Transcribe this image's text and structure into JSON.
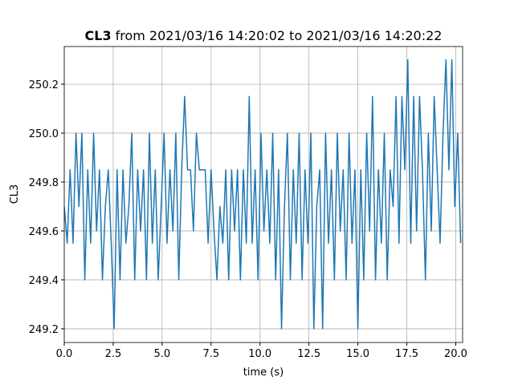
{
  "chart_data": {
    "type": "line",
    "title": {
      "bold": "CL3",
      "text": "from 2021/03/16 14:20:02 to 2021/03/16 14:20:22"
    },
    "xlabel": "time (s)",
    "ylabel": "CL3",
    "color": "#1f77b4",
    "grid": true,
    "xlim": [
      0,
      20.35
    ],
    "ylim": [
      249.144,
      250.354
    ],
    "xticks": [
      {
        "value": 0,
        "label": "0.0"
      },
      2.5,
      {
        "value": 5,
        "label": "5.0"
      },
      7.5,
      {
        "value": 10,
        "label": "10.0"
      },
      12.5,
      {
        "value": 15,
        "label": "15.0"
      },
      17.5,
      {
        "value": 20,
        "label": "20.0"
      }
    ],
    "yticks": [
      249.2,
      249.4,
      249.6,
      249.8,
      {
        "value": 250,
        "label": "250.0"
      },
      250.2
    ],
    "x": [
      0,
      0.15,
      0.3,
      0.45,
      0.6,
      0.75,
      0.9,
      1.05,
      1.2,
      1.35,
      1.5,
      1.65,
      1.8,
      1.95,
      2.1,
      2.25,
      2.4,
      2.55,
      2.7,
      2.85,
      3,
      3.15,
      3.3,
      3.45,
      3.6,
      3.75,
      3.9,
      4.05,
      4.2,
      4.35,
      4.5,
      4.65,
      4.8,
      4.95,
      5.1,
      5.25,
      5.4,
      5.55,
      5.7,
      5.85,
      6,
      6.15,
      6.3,
      6.45,
      6.6,
      6.75,
      6.9,
      7.05,
      7.2,
      7.35,
      7.5,
      7.65,
      7.8,
      7.95,
      8.1,
      8.25,
      8.4,
      8.55,
      8.7,
      8.85,
      9,
      9.15,
      9.3,
      9.45,
      9.6,
      9.75,
      9.9,
      10.05,
      10.2,
      10.35,
      10.5,
      10.65,
      10.8,
      10.95,
      11.1,
      11.25,
      11.4,
      11.55,
      11.7,
      11.85,
      12,
      12.15,
      12.3,
      12.45,
      12.6,
      12.75,
      12.9,
      13.05,
      13.2,
      13.35,
      13.5,
      13.65,
      13.8,
      13.95,
      14.1,
      14.25,
      14.4,
      14.55,
      14.7,
      14.85,
      15,
      15.15,
      15.3,
      15.45,
      15.6,
      15.75,
      15.9,
      16.05,
      16.2,
      16.35,
      16.5,
      16.65,
      16.8,
      16.95,
      17.1,
      17.25,
      17.4,
      17.55,
      17.7,
      17.85,
      18,
      18.15,
      18.3,
      18.45,
      18.6,
      18.75,
      18.9,
      19.05,
      19.2,
      19.35,
      19.5,
      19.65,
      19.8,
      19.95,
      20.1,
      20.25
    ],
    "values": [
      249.7,
      249.55,
      249.85,
      249.55,
      250,
      249.7,
      250,
      249.4,
      249.85,
      249.55,
      250,
      249.6,
      249.85,
      249.4,
      249.7,
      249.85,
      249.55,
      249.2,
      249.85,
      249.4,
      249.85,
      249.55,
      249.7,
      250,
      249.4,
      249.85,
      249.6,
      249.85,
      249.4,
      250,
      249.55,
      249.85,
      249.4,
      249.7,
      250,
      249.55,
      249.85,
      249.6,
      250,
      249.4,
      249.85,
      250.15,
      249.85,
      249.85,
      249.6,
      250,
      249.85,
      249.85,
      249.85,
      249.55,
      249.85,
      249.6,
      249.4,
      249.7,
      249.55,
      249.85,
      249.4,
      249.85,
      249.6,
      249.85,
      249.4,
      249.85,
      249.55,
      250.15,
      249.55,
      249.85,
      249.4,
      250,
      249.6,
      249.85,
      249.55,
      250,
      249.4,
      249.85,
      249.2,
      249.7,
      250,
      249.4,
      249.85,
      249.55,
      250,
      249.4,
      249.85,
      249.55,
      250,
      249.2,
      249.7,
      249.85,
      249.2,
      250,
      249.55,
      249.85,
      249.4,
      250,
      249.6,
      249.85,
      249.4,
      250,
      249.55,
      249.85,
      249.2,
      249.85,
      249.4,
      250,
      249.6,
      250.15,
      249.4,
      249.85,
      249.55,
      250,
      249.4,
      249.85,
      249.7,
      250.15,
      249.55,
      250.15,
      249.85,
      250.3,
      249.55,
      250.15,
      249.6,
      250.15,
      249.85,
      249.4,
      250,
      249.6,
      250.15,
      249.85,
      249.55,
      250,
      250.3,
      249.85,
      250.3,
      249.7,
      250,
      249.55
    ]
  }
}
